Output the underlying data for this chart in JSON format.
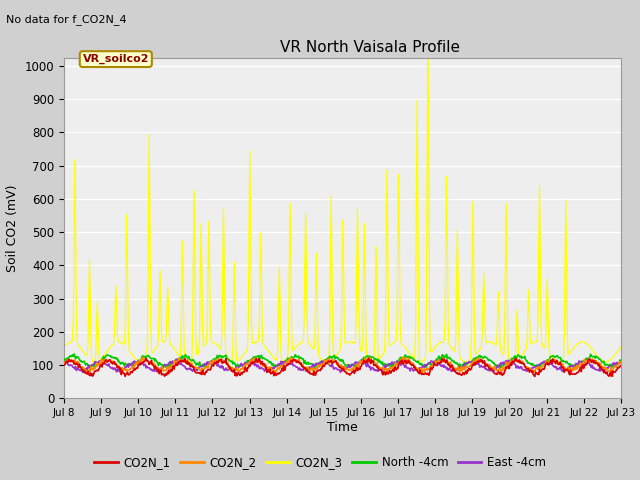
{
  "title": "VR North Vaisala Profile",
  "subtitle": "No data for f_CO2N_4",
  "box_label": "VR_soilco2",
  "ylabel": "Soil CO2 (mV)",
  "xlabel": "Time",
  "ylim": [
    0,
    1025
  ],
  "yticks": [
    0,
    100,
    200,
    300,
    400,
    500,
    600,
    700,
    800,
    900,
    1000
  ],
  "xtick_labels": [
    "Jul 8",
    "Jul 9",
    "Jul 10",
    "Jul 11",
    "Jul 12",
    "Jul 13",
    "Jul 14",
    "Jul 15",
    "Jul 16",
    "Jul 17",
    "Jul 18",
    "Jul 19",
    "Jul 20",
    "Jul 21",
    "Jul 22",
    "Jul 23"
  ],
  "fig_bg_color": "#d0d0d0",
  "plot_bg_color": "#eeeeee",
  "line_colors": {
    "CO2N_1": "#dd0000",
    "CO2N_2": "#ff8800",
    "CO2N_3": "#ffff00",
    "North_4cm": "#00cc00",
    "East_4cm": "#9933cc"
  }
}
